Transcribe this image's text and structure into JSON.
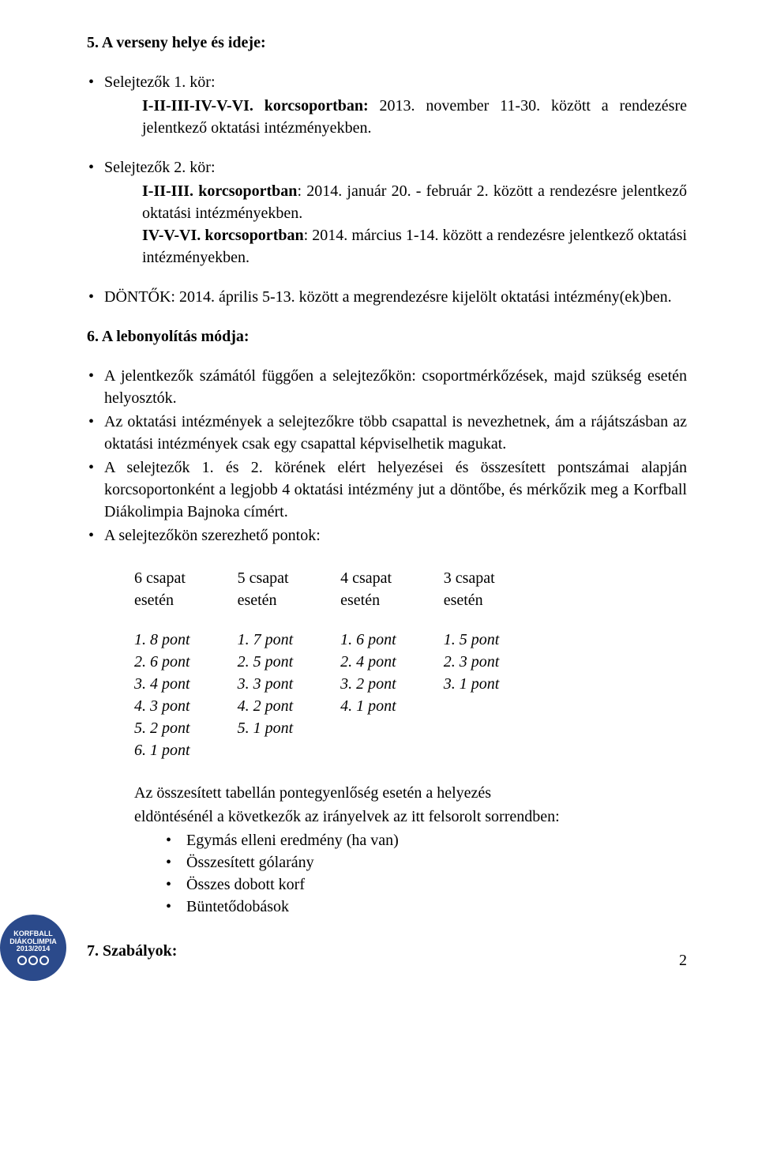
{
  "section5": {
    "heading": "5. A verseny helye és ideje:",
    "items": [
      {
        "lead": "Selejtezők 1. kör:",
        "body_pre": "",
        "bold1": "I-II-III-IV-V-VI. korcsoportban:",
        "mid": " 2013. november 11-30. között a rendezésre jelentkező oktatási intézményekben."
      },
      {
        "lead": "Selejtezők 2. kör:",
        "bold1": "I-II-III. korcsoportban",
        "mid1": ": 2014. január 20. - február 2. között a rendezésre jelentkező oktatási intézményekben.",
        "bold2": "IV-V-VI. korcsoportban",
        "mid2": ": 2014. március 1-14. között a rendezésre jelentkező oktatási intézményekben."
      },
      {
        "lead": "DÖNTŐK: 2014. április 5-13. között a megrendezésre kijelölt oktatási intézmény(ek)ben."
      }
    ]
  },
  "section6": {
    "heading": "6. A lebonyolítás módja:",
    "bullets": [
      {
        "type": "indent",
        "lead": "A jelentkezők számától függően a selejtezőkön: csoportmérkőzések, majd szükség esetén helyosztók.",
        "body": ""
      },
      {
        "type": "justify",
        "text": "Az oktatási intézmények a selejtezőkre több csapattal is nevezhetnek, ám a rájátszásban az oktatási intézmények csak egy csapattal képviselhetik magukat."
      },
      {
        "type": "justify",
        "text": "A selejtezők 1. és 2. körének elért helyezései és összesített pontszámai alapján korcsoportonként a legjobb 4 oktatási intézmény jut a döntőbe, és mérkőzik meg a Korfball Diákolimpia Bajnoka címért."
      },
      {
        "type": "plain",
        "text": "A selejtezőkön szerezhető pontok:"
      }
    ],
    "points": {
      "columns": [
        {
          "header1": "6 csapat",
          "header2": "esetén",
          "rows": [
            "1. 8 pont",
            "2. 6 pont",
            "3. 4 pont",
            "4. 3 pont",
            "5. 2 pont",
            "6. 1 pont"
          ]
        },
        {
          "header1": "5 csapat",
          "header2": "esetén",
          "rows": [
            "1. 7 pont",
            "2. 5 pont",
            "3. 3 pont",
            "4. 2 pont",
            "5. 1 pont"
          ]
        },
        {
          "header1": "4 csapat",
          "header2": "esetén",
          "rows": [
            "1. 6 pont",
            "2. 4 pont",
            "3. 2 pont",
            "4. 1 pont"
          ]
        },
        {
          "header1": "3 csapat",
          "header2": "esetén",
          "rows": [
            "1. 5 pont",
            "2. 3 pont",
            "3. 1 pont"
          ]
        }
      ]
    },
    "tiebreak": {
      "intro1": "Az összesített tabellán pontegyenlőség esetén a helyezés",
      "intro2": "eldöntésénél a következők az irányelvek az itt felsorolt sorrendben:",
      "items": [
        "Egymás elleni eredmény (ha van)",
        "Összesített gólarány",
        "Összes dobott korf",
        "Büntetődobások"
      ]
    }
  },
  "section7": {
    "heading": "7. Szabályok:"
  },
  "footer": {
    "logo_line1": "KORFBALL",
    "logo_line2": "DIÁKOLIMPIA",
    "logo_line3": "2013/2014",
    "page_number": "2",
    "logo_bg": "#2b4a8b"
  }
}
